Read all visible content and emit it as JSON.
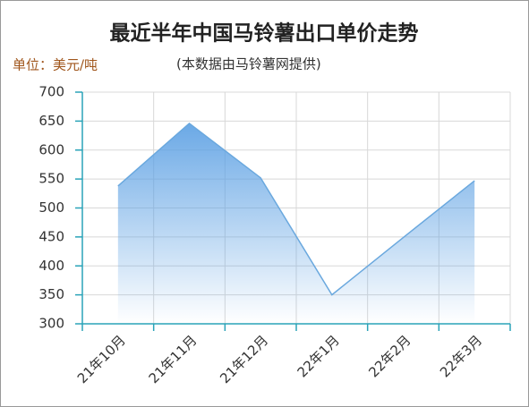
{
  "chart_data": {
    "type": "area",
    "title": "最近半年中国马铃薯出口单价走势",
    "y_label": "单位：美元/吨",
    "subtitle": "(本数据由马铃薯网提供)",
    "categories": [
      "21年10月",
      "21年11月",
      "21年12月",
      "22年1月",
      "22年2月",
      "22年3月"
    ],
    "values": [
      538,
      646,
      552,
      350,
      449,
      547
    ],
    "color": "#6aa8de",
    "ylim": [
      300,
      700
    ],
    "yticks": [
      300,
      350,
      400,
      450,
      500,
      550,
      600,
      650,
      700
    ],
    "grid": true
  }
}
